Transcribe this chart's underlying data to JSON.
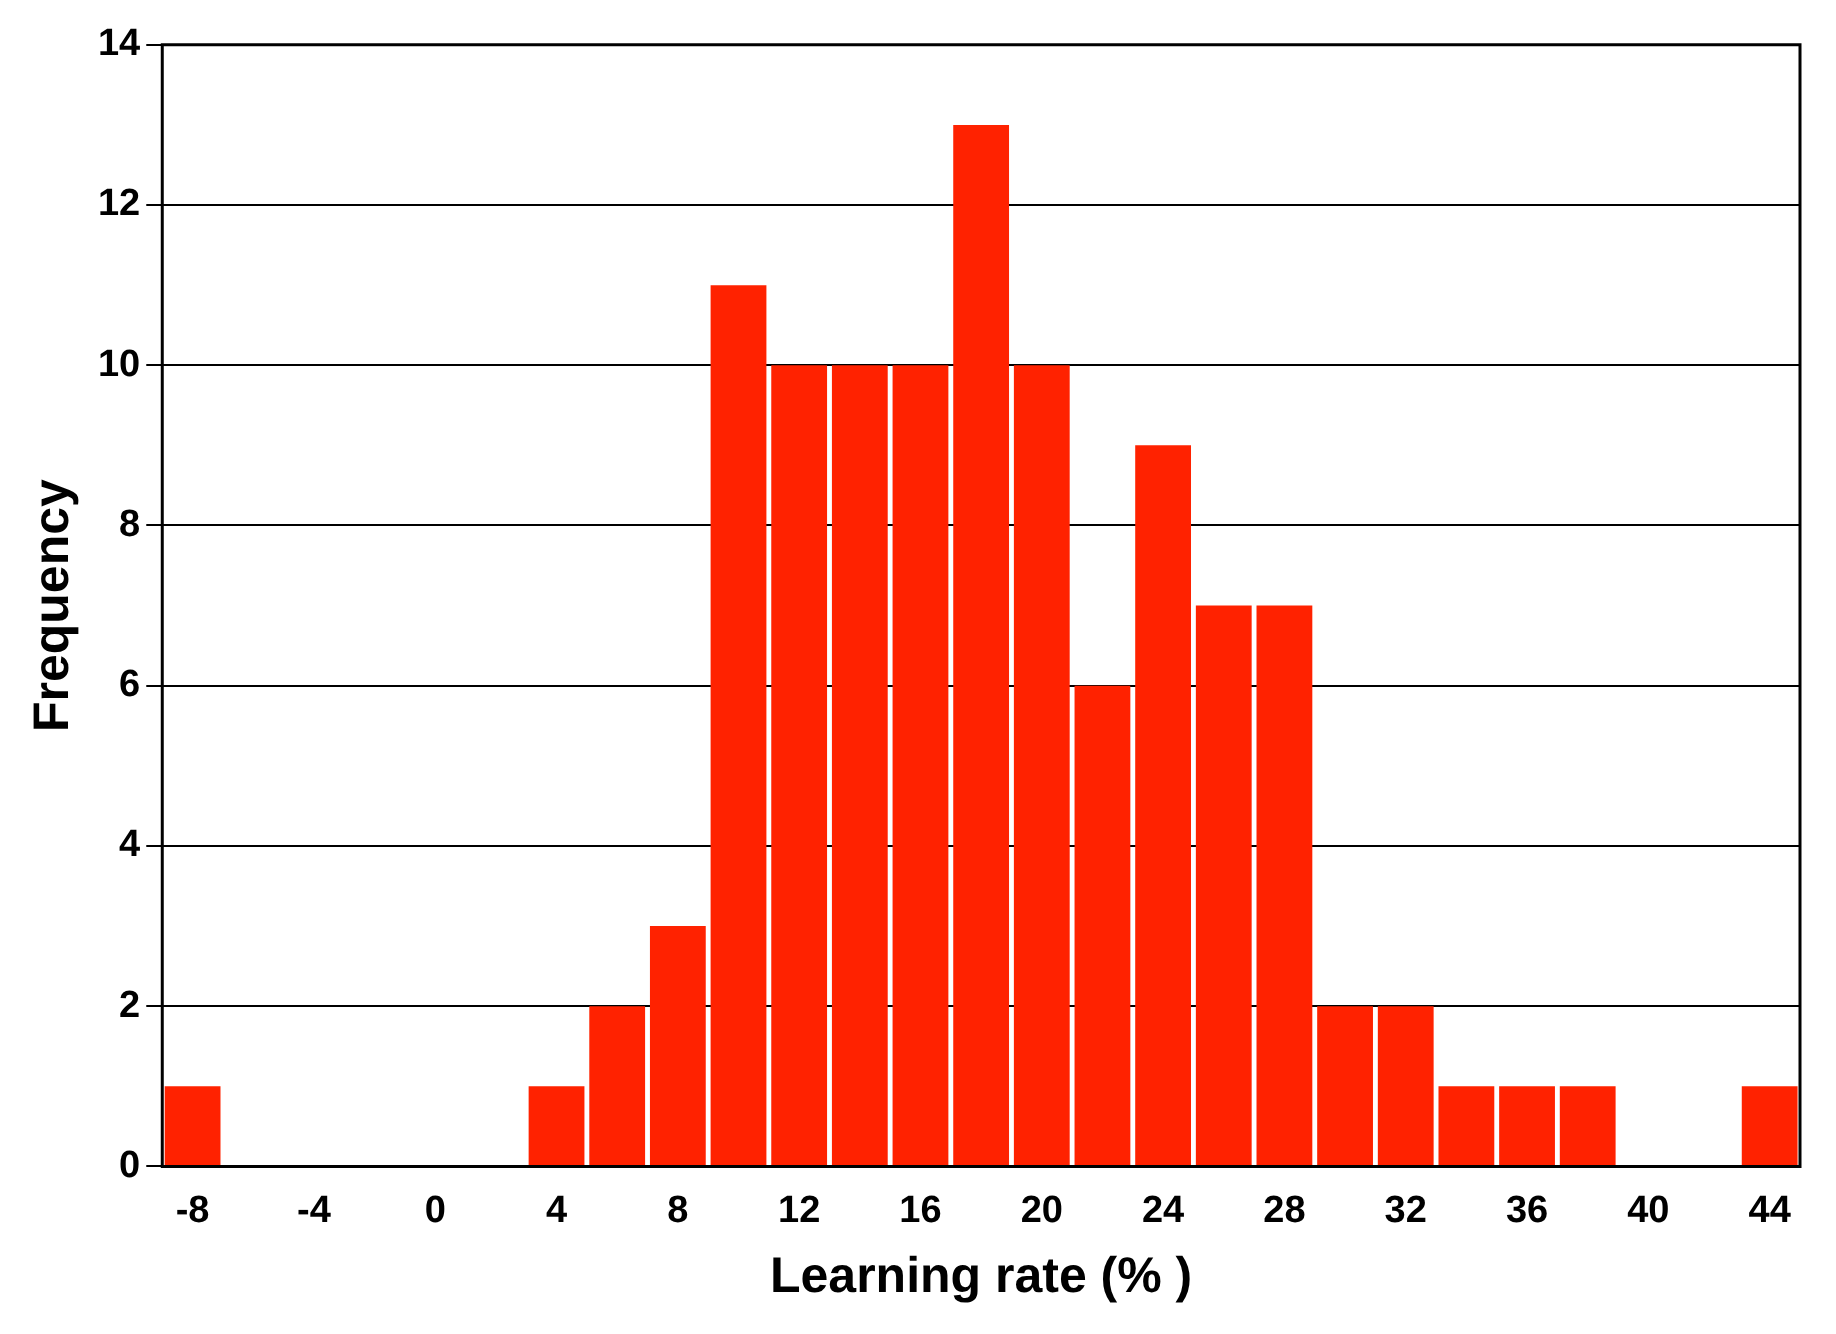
{
  "chart_data": {
    "type": "bar",
    "xlabel": "Learning rate (% )",
    "ylabel": "Frequency",
    "categories": [
      "-8",
      null,
      "-4",
      null,
      "0",
      null,
      "4",
      null,
      "8",
      null,
      "12",
      null,
      "16",
      null,
      "20",
      null,
      "24",
      null,
      "28",
      null,
      "32",
      null,
      "36",
      null,
      "40",
      null,
      "44"
    ],
    "values": [
      1,
      0,
      0,
      0,
      0,
      0,
      1,
      2,
      3,
      11,
      10,
      10,
      10,
      13,
      10,
      6,
      9,
      7,
      7,
      2,
      2,
      1,
      1,
      1,
      0,
      0,
      1
    ],
    "color": "#ff2200",
    "ylim": [
      0,
      14
    ],
    "yticks": [
      0,
      2,
      4,
      6,
      8,
      10,
      12,
      14
    ],
    "grid": "y"
  }
}
